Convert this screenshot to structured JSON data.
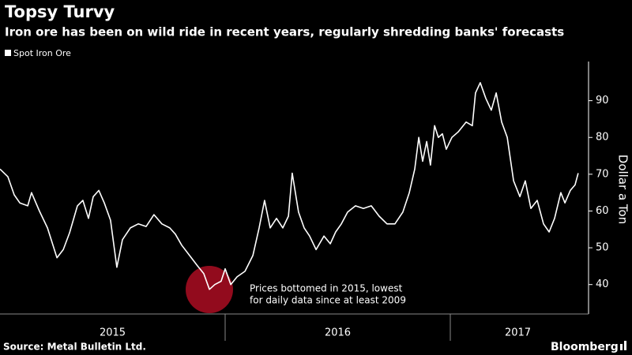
{
  "chart_data": {
    "type": "line",
    "title": "Topsy Turvy",
    "subtitle": "Iron ore has been on wild ride in recent years, regularly shredding banks' forecasts",
    "y_label": "Dollar a Ton",
    "source": "Source: Metal Bulletin Ltd.",
    "brand": "Bloomberg",
    "annotation": [
      "Prices bottomed in 2015, lowest",
      "for daily data since at least 2009"
    ],
    "legend": "top-left",
    "grid": false,
    "xlim": [
      2015,
      2017.614
    ],
    "xticks": [
      {
        "value": 2015.5,
        "label": "2015"
      },
      {
        "value": 2016.5,
        "label": "2016"
      },
      {
        "value": 2017.3,
        "label": "2017"
      }
    ],
    "ylim": [
      32,
      100
    ],
    "yticks": [
      40,
      50,
      60,
      70,
      80,
      90
    ],
    "x": [
      2015.0,
      2015.035,
      2015.063,
      2015.088,
      2015.123,
      2015.14,
      2015.175,
      2015.211,
      2015.253,
      2015.281,
      2015.309,
      2015.344,
      2015.368,
      2015.393,
      2015.414,
      2015.439,
      2015.463,
      2015.491,
      2015.519,
      2015.544,
      2015.579,
      2015.614,
      2015.649,
      2015.684,
      2015.719,
      2015.754,
      2015.779,
      2015.807,
      2015.842,
      2015.877,
      2015.905,
      2015.93,
      2015.954,
      2015.982,
      2016.0,
      2016.025,
      2016.053,
      2016.088,
      2016.123,
      2016.151,
      2016.175,
      2016.2,
      2016.228,
      2016.256,
      2016.281,
      2016.298,
      2016.326,
      2016.351,
      2016.375,
      2016.404,
      2016.439,
      2016.467,
      2016.491,
      2016.516,
      2016.544,
      2016.579,
      2016.614,
      2016.649,
      2016.684,
      2016.719,
      2016.754,
      2016.789,
      2016.818,
      2016.842,
      2016.86,
      2016.877,
      2016.895,
      2016.912,
      2016.93,
      2016.947,
      2016.965,
      2016.982,
      2017.007,
      2017.035,
      2017.07,
      2017.098,
      2017.112,
      2017.133,
      2017.158,
      2017.182,
      2017.204,
      2017.228,
      2017.253,
      2017.281,
      2017.309,
      2017.333,
      2017.358,
      2017.386,
      2017.414,
      2017.439,
      2017.463,
      2017.491,
      2017.509,
      2017.533,
      2017.554,
      2017.568
    ],
    "series": [
      {
        "name": "Spot Iron Ore",
        "color": "#ffffff",
        "values": [
          71.4,
          69.3,
          64.4,
          62.2,
          61.4,
          65,
          60,
          55.4,
          47.3,
          49.5,
          54.1,
          61.4,
          62.9,
          58,
          63.9,
          65.6,
          62.2,
          57.5,
          44.7,
          52.2,
          55.4,
          56.5,
          55.8,
          59,
          56.5,
          55.4,
          53.7,
          50.7,
          47.9,
          45.1,
          43,
          38.7,
          40,
          40.9,
          44.3,
          40,
          42.1,
          43.6,
          47.9,
          55.4,
          62.9,
          55.4,
          58,
          55.4,
          58.6,
          70.3,
          59.7,
          55.4,
          53.2,
          49.5,
          53.2,
          51.1,
          54.3,
          56.5,
          59.7,
          61.4,
          60.7,
          61.4,
          58.6,
          56.5,
          56.5,
          59.7,
          65,
          71.4,
          80,
          73.5,
          78.9,
          72.5,
          83.2,
          80,
          81,
          76.8,
          80,
          81.5,
          84.2,
          83.2,
          92.1,
          94.9,
          90.6,
          87.4,
          92.1,
          84.2,
          80,
          68.2,
          63.9,
          68.2,
          60.7,
          62.9,
          56.5,
          54.3,
          58,
          65,
          62.2,
          65.6,
          67.1,
          70.3
        ]
      }
    ]
  }
}
